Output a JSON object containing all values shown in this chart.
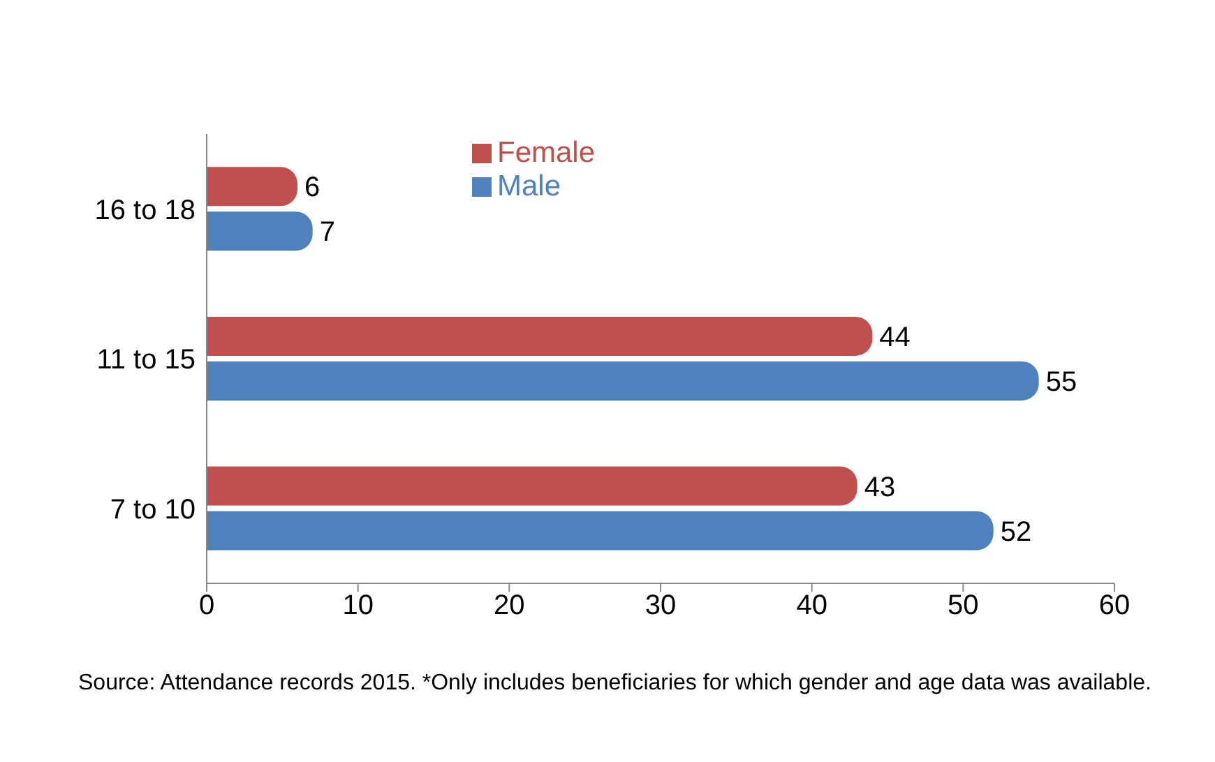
{
  "chart_data": {
    "type": "bar",
    "orientation": "horizontal",
    "categories": [
      "16 to 18",
      "11 to 15",
      "7 to 10"
    ],
    "series": [
      {
        "name": "Female",
        "color": "#c0504d",
        "values": [
          6,
          44,
          43
        ]
      },
      {
        "name": "Male",
        "color": "#4f81bd",
        "values": [
          7,
          55,
          52
        ]
      }
    ],
    "xlim": [
      0,
      60
    ],
    "xticks": [
      0,
      10,
      20,
      30,
      40,
      50,
      60
    ],
    "data_labels": true,
    "legend": "top",
    "grid": false,
    "annotations": [
      "Source: Attendance records 2015. *Only includes beneficiaries for which gender and age data was available."
    ]
  }
}
